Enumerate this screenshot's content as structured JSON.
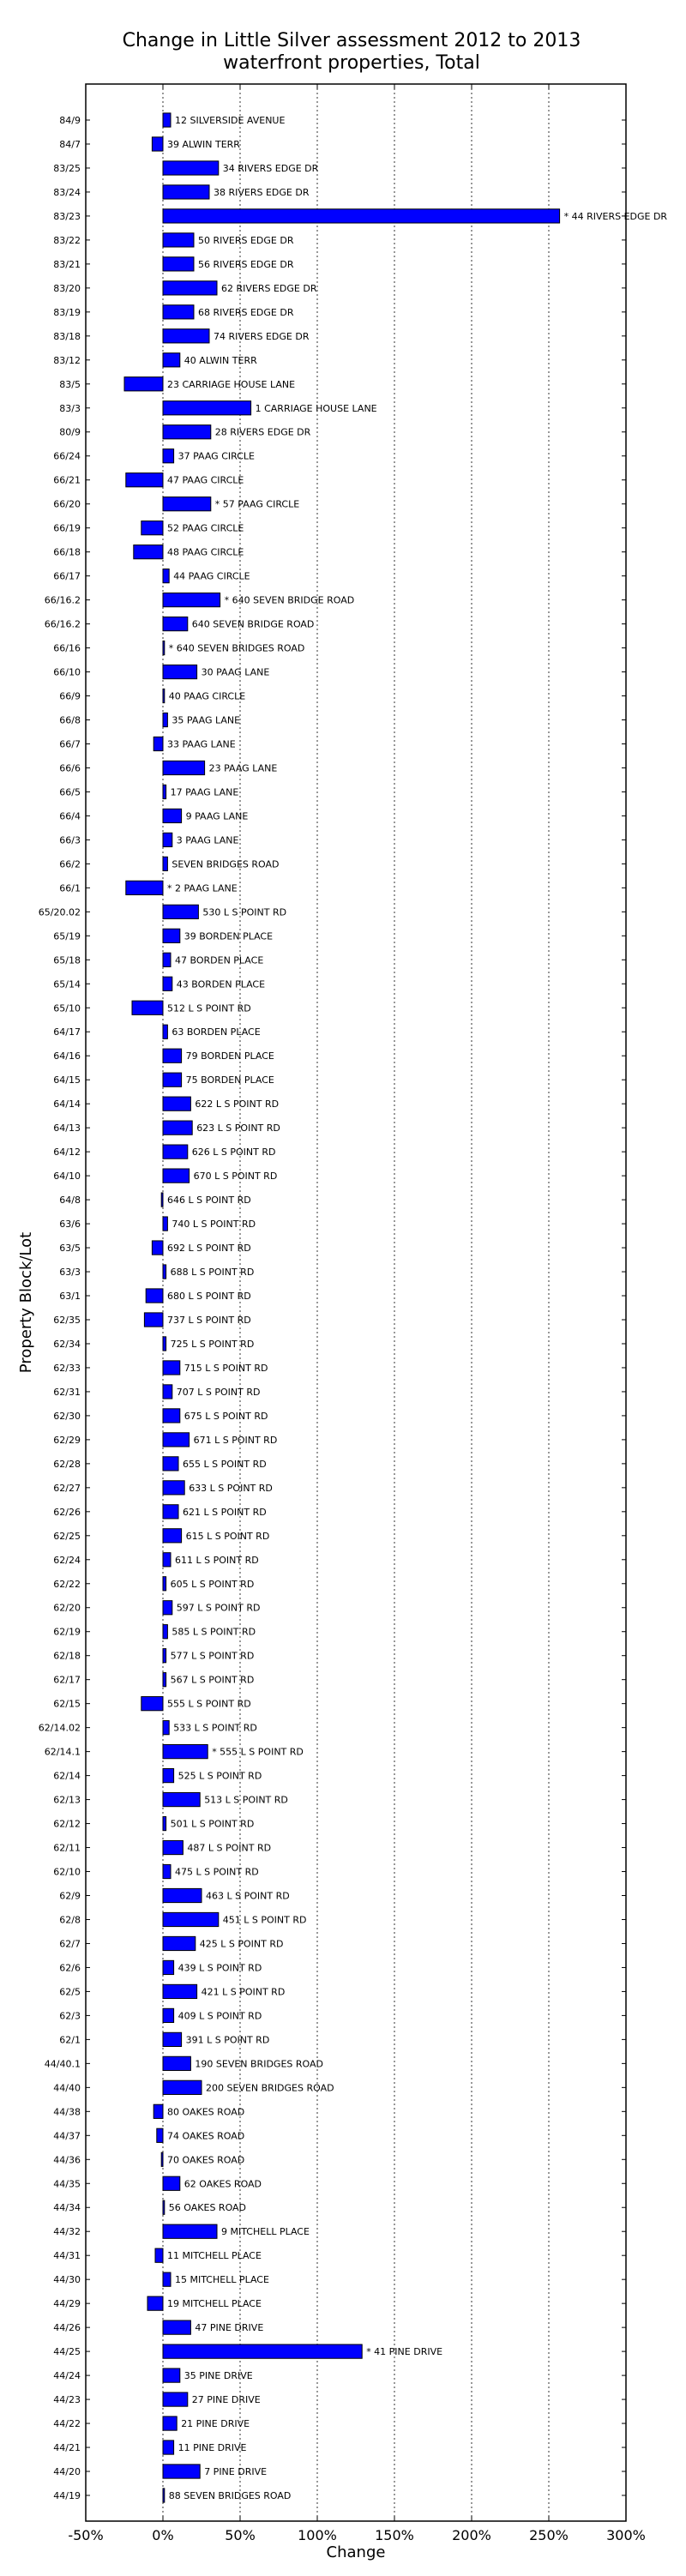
{
  "chart_data": {
    "type": "bar",
    "orientation": "horizontal",
    "title": [
      "Change in Little Silver assessment 2012 to 2013",
      "waterfront properties, Total"
    ],
    "xlabel": "Change",
    "ylabel": "Property Block/Lot",
    "xlim": [
      -50,
      300
    ],
    "xticks": [
      -50,
      0,
      50,
      100,
      150,
      200,
      250,
      300
    ],
    "xtick_labels": [
      "-50%",
      "0%",
      "50%",
      "100%",
      "150%",
      "200%",
      "250%",
      "300%"
    ],
    "grid": "vertical dotted",
    "bar_color": "#0000ff",
    "categories": [
      "84/9",
      "84/7",
      "83/25",
      "83/24",
      "83/23",
      "83/22",
      "83/21",
      "83/20",
      "83/19",
      "83/18",
      "83/12",
      "83/5",
      "83/3",
      "80/9",
      "66/24",
      "66/21",
      "66/20",
      "66/19",
      "66/18",
      "66/17",
      "66/16.2",
      "66/16.2",
      "66/16",
      "66/10",
      "66/9",
      "66/8",
      "66/7",
      "66/6",
      "66/5",
      "66/4",
      "66/3",
      "66/2",
      "66/1",
      "65/20.02",
      "65/19",
      "65/18",
      "65/14",
      "65/10",
      "64/17",
      "64/16",
      "64/15",
      "64/14",
      "64/13",
      "64/12",
      "64/10",
      "64/8",
      "63/6",
      "63/5",
      "63/3",
      "63/1",
      "62/35",
      "62/34",
      "62/33",
      "62/31",
      "62/30",
      "62/29",
      "62/28",
      "62/27",
      "62/26",
      "62/25",
      "62/24",
      "62/22",
      "62/20",
      "62/19",
      "62/18",
      "62/17",
      "62/15",
      "62/14.02",
      "62/14.1",
      "62/14",
      "62/13",
      "62/12",
      "62/11",
      "62/10",
      "62/9",
      "62/8",
      "62/7",
      "62/6",
      "62/5",
      "62/3",
      "62/1",
      "44/40.1",
      "44/40",
      "44/38",
      "44/37",
      "44/36",
      "44/35",
      "44/34",
      "44/32",
      "44/31",
      "44/30",
      "44/29",
      "44/26",
      "44/25",
      "44/24",
      "44/23",
      "44/22",
      "44/21",
      "44/20",
      "44/19"
    ],
    "bar_labels": [
      "12 SILVERSIDE AVENUE",
      "39 ALWIN TERR",
      "34 RIVERS EDGE DR",
      "38 RIVERS EDGE DR",
      "* 44 RIVERS EDGE DR",
      "50 RIVERS EDGE DR",
      "56 RIVERS EDGE DR",
      "62 RIVERS EDGE DR",
      "68 RIVERS EDGE DR",
      "74 RIVERS EDGE DR",
      "40 ALWIN TERR",
      "23 CARRIAGE HOUSE LANE",
      "1 CARRIAGE HOUSE LANE",
      "28 RIVERS EDGE DR",
      "37 PAAG CIRCLE",
      "47 PAAG CIRCLE",
      "* 57 PAAG CIRCLE",
      "52 PAAG CIRCLE",
      "48 PAAG CIRCLE",
      "44 PAAG CIRCLE",
      "* 640 SEVEN BRIDGE ROAD",
      "640 SEVEN BRIDGE ROAD",
      "* 640 SEVEN BRIDGES ROAD",
      "30 PAAG LANE",
      "40 PAAG CIRCLE",
      "35 PAAG LANE",
      "33 PAAG LANE",
      "23 PAAG LANE",
      "17 PAAG LANE",
      "9 PAAG LANE",
      "3 PAAG LANE",
      "SEVEN BRIDGES ROAD",
      "* 2 PAAG LANE",
      "530 L S POINT RD",
      "39 BORDEN PLACE",
      "47 BORDEN PLACE",
      "43 BORDEN PLACE",
      "512 L S POINT RD",
      "63 BORDEN PLACE",
      "79 BORDEN PLACE",
      "75 BORDEN PLACE",
      "622 L S POINT RD",
      "623 L S POINT RD",
      "626 L S POINT RD",
      "670 L S POINT RD",
      "646 L S POINT RD",
      "740 L S POINT RD",
      "692 L S POINT RD",
      "688 L S POINT RD",
      "680 L S POINT RD",
      "737 L S POINT RD",
      "725 L S POINT RD",
      "715 L S POINT RD",
      "707 L S POINT RD",
      "675 L S POINT RD",
      "671 L S POINT RD",
      "655 L S POINT RD",
      "633 L S POINT RD",
      "621 L S POINT RD",
      "615 L S POINT RD",
      "611 L S POINT RD",
      "605 L S POINT RD",
      "597 L S POINT RD",
      "585 L S POINT RD",
      "577 L S POINT RD",
      "567 L S POINT RD",
      "555 L S POINT RD",
      "533 L S POINT RD",
      "* 555 L S POINT RD",
      "525 L S POINT RD",
      "513 L S POINT RD",
      "501 L S POINT RD",
      "487 L S POINT RD",
      "475 L S POINT RD",
      "463 L S POINT RD",
      "451 L S POINT RD",
      "425 L S POINT RD",
      "439 L S POINT RD",
      "421 L S POINT RD",
      "409 L S POINT RD",
      "391 L S POINT RD",
      "190 SEVEN BRIDGES ROAD",
      "200 SEVEN BRIDGES ROAD",
      "80 OAKES ROAD",
      "74 OAKES ROAD",
      "70 OAKES ROAD",
      "62 OAKES ROAD",
      "56 OAKES ROAD",
      "9 MITCHELL PLACE",
      "11 MITCHELL PLACE",
      "15 MITCHELL PLACE",
      "19 MITCHELL PLACE",
      "47 PINE DRIVE",
      "* 41 PINE DRIVE",
      "35 PINE DRIVE",
      "27 PINE DRIVE",
      "21 PINE DRIVE",
      "11 PINE DRIVE",
      "7 PINE DRIVE",
      "88 SEVEN BRIDGES ROAD"
    ],
    "values": [
      5,
      -7,
      36,
      30,
      257,
      20,
      20,
      35,
      20,
      30,
      11,
      -25,
      57,
      31,
      7,
      -24,
      31,
      -14,
      -19,
      4,
      37,
      16,
      1,
      22,
      1,
      3,
      -6,
      27,
      2,
      12,
      6,
      3,
      -24,
      23,
      11,
      5,
      6,
      -20,
      3,
      12,
      12,
      18,
      19,
      16,
      17,
      -1,
      3,
      -7,
      2,
      -11,
      -12,
      2,
      11,
      6,
      11,
      17,
      10,
      14,
      10,
      12,
      5,
      2,
      6,
      3,
      2,
      2,
      -14,
      4,
      29,
      7,
      24,
      2,
      13,
      5,
      25,
      36,
      21,
      7,
      22,
      7,
      12,
      18,
      25,
      -6,
      -4,
      -1,
      11,
      1,
      35,
      -5,
      5,
      -10,
      18,
      129,
      11,
      16,
      9,
      7,
      24,
      1
    ]
  }
}
